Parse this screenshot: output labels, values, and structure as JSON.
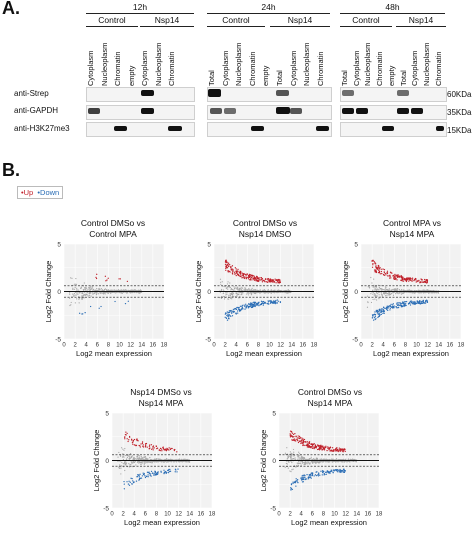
{
  "panel_a": {
    "letter": "A.",
    "timepoints": [
      "12h",
      "24h",
      "48h"
    ],
    "conditions": {
      "control": "Control",
      "nsp14": "Nsp14"
    },
    "lanes_12h": [
      "Cytoplasm",
      "Nucleoplasm",
      "Chromatin",
      "empty",
      "Cytoplasm",
      "Nucleoplasm",
      "Chromatin"
    ],
    "lanes_24h": [
      "Total",
      "Cytoplasm",
      "Nucleoplasm",
      "Chromatin",
      "empty",
      "Total",
      "Cytoplasm",
      "Nucleoplasm",
      "Chromatin"
    ],
    "lanes_48h": [
      "Total",
      "Cytoplasm",
      "Nucleoplasm",
      "Chromatin",
      "empty",
      "Total",
      "Cytoplasm",
      "Nucleoplasm",
      "Chromatin"
    ],
    "antibodies": [
      "anti-Strep",
      "anti-GAPDH",
      "anti-H3K27me3"
    ],
    "markers": [
      "60KDa",
      "35KDa",
      "15KDa"
    ]
  },
  "panel_b": {
    "letter": "B.",
    "legend": {
      "up": "Up",
      "down": "Down"
    },
    "colors": {
      "up": "#c0202a",
      "down": "#2a6db5",
      "ns": "#a8a8a8"
    },
    "ylabel": "Log2 Fold Change",
    "xlabel": "Log2 mean expression",
    "plots": [
      {
        "title_line1": "Control DMSo vs",
        "title_line2": "Control MPA"
      },
      {
        "title_line1": "Control DMSo vs",
        "title_line2": "Nsp14 DMSO"
      },
      {
        "title_line1": "Control MPA vs",
        "title_line2": "Nsp14 MPA"
      },
      {
        "title_line1": "Nsp14 DMSo vs",
        "title_line2": "Nsp14 MPA"
      },
      {
        "title_line1": "Control DMSo vs",
        "title_line2": "Nsp14 MPA"
      }
    ]
  },
  "chart_data": [
    {
      "type": "scatter",
      "title": "Control DMSo vs Control MPA",
      "xlabel": "Log2 mean expression",
      "ylabel": "Log2 Fold Change",
      "xlim": [
        0,
        18
      ],
      "ylim": [
        -5,
        5
      ],
      "x_ticks": [
        0,
        2,
        4,
        6,
        8,
        10,
        12,
        14,
        16,
        18
      ],
      "y_ticks": [
        5,
        0,
        -5
      ],
      "series": [
        {
          "name": "Up",
          "up_count_est": 40
        },
        {
          "name": "Down",
          "down_count_est": 40
        }
      ]
    },
    {
      "type": "scatter",
      "title": "Control DMSo vs Nsp14 DMSO",
      "xlabel": "Log2 mean expression",
      "ylabel": "Log2 Fold Change",
      "xlim": [
        0,
        18
      ],
      "ylim": [
        -5,
        5
      ],
      "x_ticks": [
        0,
        2,
        4,
        6,
        8,
        10,
        12,
        14,
        16,
        18
      ],
      "y_ticks": [
        5,
        0,
        -5
      ],
      "series": [
        {
          "name": "Up",
          "up_count_est": 900
        },
        {
          "name": "Down",
          "down_count_est": 600
        }
      ]
    },
    {
      "type": "scatter",
      "title": "Control MPA vs Nsp14 MPA",
      "xlabel": "Log2 mean expression",
      "ylabel": "Log2 Fold Change",
      "xlim": [
        0,
        18
      ],
      "ylim": [
        -5,
        5
      ],
      "x_ticks": [
        0,
        2,
        4,
        6,
        8,
        10,
        12,
        14,
        16,
        18
      ],
      "y_ticks": [
        5,
        0,
        -5
      ],
      "series": [
        {
          "name": "Up",
          "up_count_est": 600
        },
        {
          "name": "Down",
          "down_count_est": 600
        }
      ]
    },
    {
      "type": "scatter",
      "title": "Nsp14 DMSo vs Nsp14 MPA",
      "xlabel": "Log2 mean expression",
      "ylabel": "Log2 Fold Change",
      "xlim": [
        0,
        18
      ],
      "ylim": [
        -5,
        5
      ],
      "x_ticks": [
        0,
        2,
        4,
        6,
        8,
        10,
        12,
        14,
        16,
        18
      ],
      "y_ticks": [
        5,
        0,
        -5
      ],
      "series": [
        {
          "name": "Up",
          "up_count_est": 300
        },
        {
          "name": "Down",
          "down_count_est": 300
        }
      ]
    },
    {
      "type": "scatter",
      "title": "Control DMSo vs Nsp14 MPA",
      "xlabel": "Log2 mean expression",
      "ylabel": "Log2 Fold Change",
      "xlim": [
        0,
        18
      ],
      "ylim": [
        -5,
        5
      ],
      "x_ticks": [
        0,
        2,
        4,
        6,
        8,
        10,
        12,
        14,
        16,
        18
      ],
      "y_ticks": [
        5,
        0,
        -5
      ],
      "series": [
        {
          "name": "Up",
          "up_count_est": 700
        },
        {
          "name": "Down",
          "down_count_est": 450
        }
      ]
    }
  ]
}
